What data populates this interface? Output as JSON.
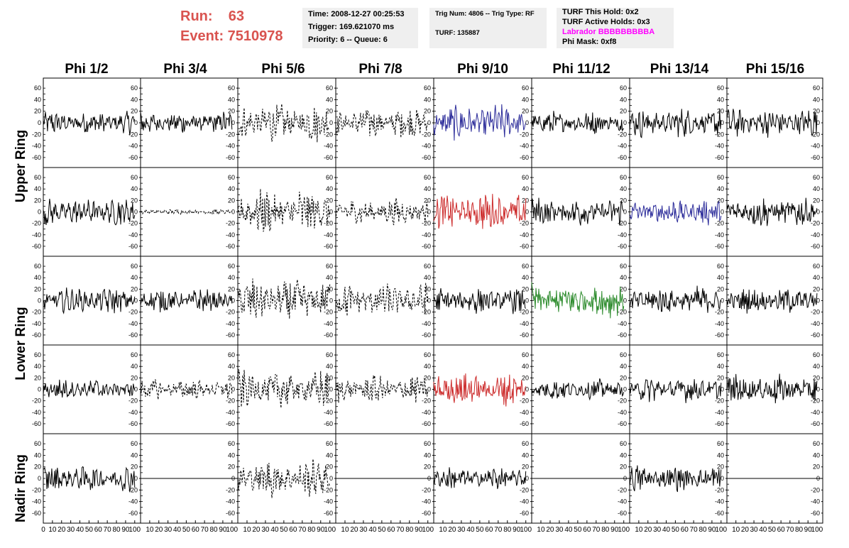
{
  "header": {
    "run_label": "Run:    63",
    "event_label": "Event: 7510978",
    "label_color": "#d9534f"
  },
  "info_box_1": {
    "time": "Time: 2008-12-27 00:25:53",
    "trigger": "Trigger: 169.621070 ms",
    "priority": "Priority: 6 -- Queue: 6"
  },
  "info_box_2": {
    "trig": "Trig Num: 4806 -- Trig Type: RF",
    "turf": "TURF: 135887"
  },
  "info_box_3": {
    "this_hold": "TURF This Hold: 0x2",
    "active_holds": "TURF Active Holds: 0x3",
    "labrador": "Labrador BBBBBBBBBA",
    "labrador_color": "#ff00ff",
    "phi_mask": "Phi Mask: 0xf8"
  },
  "columns": [
    "Phi 1/2",
    "Phi 3/4",
    "Phi 5/6",
    "Phi 7/8",
    "Phi 9/10",
    "Phi 11/12",
    "Phi 13/14",
    "Phi 15/16"
  ],
  "rows": [
    "Upper Ring",
    "Lower Ring",
    "Nadir Ring"
  ],
  "axes": {
    "y_ticks": [
      "60",
      "40",
      "20",
      "0",
      "-20",
      "-40",
      "-60"
    ],
    "nadir_y_ticks": [
      "60",
      "40",
      "20",
      "0",
      "-20",
      "-40",
      "-60"
    ],
    "x_ticks": [
      "0",
      "10",
      "20",
      "30",
      "40",
      "50",
      "60",
      "70",
      "80",
      "90",
      "100"
    ]
  },
  "chart_data": {
    "type": "line",
    "xlim": [
      0,
      100
    ],
    "ylim": [
      -70,
      70
    ],
    "panels": [
      {
        "row": 0,
        "col": 0,
        "style": "solid",
        "color": "#000000",
        "amp": 18
      },
      {
        "row": 0,
        "col": 1,
        "style": "solid",
        "color": "#000000",
        "amp": 18
      },
      {
        "row": 0,
        "col": 2,
        "style": "dashed",
        "color": "#000000",
        "amp": 30
      },
      {
        "row": 0,
        "col": 3,
        "style": "dashed",
        "color": "#000000",
        "amp": 24
      },
      {
        "row": 0,
        "col": 4,
        "style": "solid",
        "color": "#2c2c9a",
        "amp": 28
      },
      {
        "row": 0,
        "col": 5,
        "style": "solid",
        "color": "#000000",
        "amp": 18
      },
      {
        "row": 0,
        "col": 6,
        "style": "solid",
        "color": "#000000",
        "amp": 22
      },
      {
        "row": 0,
        "col": 7,
        "style": "solid",
        "color": "#000000",
        "amp": 22
      },
      {
        "row": 1,
        "col": 0,
        "style": "solid",
        "color": "#000000",
        "amp": 22
      },
      {
        "row": 1,
        "col": 1,
        "style": "dashed",
        "color": "#000000",
        "amp": 4
      },
      {
        "row": 1,
        "col": 2,
        "style": "dashed",
        "color": "#000000",
        "amp": 35
      },
      {
        "row": 1,
        "col": 3,
        "style": "dashed",
        "color": "#000000",
        "amp": 20
      },
      {
        "row": 1,
        "col": 4,
        "style": "solid",
        "color": "#cc2a2a",
        "amp": 30
      },
      {
        "row": 1,
        "col": 5,
        "style": "solid",
        "color": "#000000",
        "amp": 22
      },
      {
        "row": 1,
        "col": 6,
        "style": "solid",
        "color": "#2c2c9a",
        "amp": 20
      },
      {
        "row": 1,
        "col": 7,
        "style": "solid",
        "color": "#000000",
        "amp": 24
      },
      {
        "row": 2,
        "col": 0,
        "style": "solid",
        "color": "#000000",
        "amp": 20
      },
      {
        "row": 2,
        "col": 1,
        "style": "solid",
        "color": "#000000",
        "amp": 18
      },
      {
        "row": 2,
        "col": 2,
        "style": "dashed",
        "color": "#000000",
        "amp": 33
      },
      {
        "row": 2,
        "col": 3,
        "style": "dashed",
        "color": "#000000",
        "amp": 26
      },
      {
        "row": 2,
        "col": 4,
        "style": "solid",
        "color": "#000000",
        "amp": 20
      },
      {
        "row": 2,
        "col": 5,
        "style": "solid",
        "color": "#2a8a2a",
        "amp": 28
      },
      {
        "row": 2,
        "col": 6,
        "style": "solid",
        "color": "#000000",
        "amp": 22
      },
      {
        "row": 2,
        "col": 7,
        "style": "solid",
        "color": "#000000",
        "amp": 20
      },
      {
        "row": 3,
        "col": 0,
        "style": "solid",
        "color": "#000000",
        "amp": 16
      },
      {
        "row": 3,
        "col": 1,
        "style": "dashed",
        "color": "#000000",
        "amp": 16
      },
      {
        "row": 3,
        "col": 2,
        "style": "dashed",
        "color": "#000000",
        "amp": 30
      },
      {
        "row": 3,
        "col": 3,
        "style": "dashed",
        "color": "#000000",
        "amp": 22
      },
      {
        "row": 3,
        "col": 4,
        "style": "solid",
        "color": "#cc2a2a",
        "amp": 28
      },
      {
        "row": 3,
        "col": 5,
        "style": "solid",
        "color": "#000000",
        "amp": 16
      },
      {
        "row": 3,
        "col": 6,
        "style": "solid",
        "color": "#000000",
        "amp": 20
      },
      {
        "row": 3,
        "col": 7,
        "style": "solid",
        "color": "#000000",
        "amp": 24
      },
      {
        "row": 4,
        "col": 0,
        "style": "solid",
        "color": "#000000",
        "amp": 20
      },
      {
        "row": 4,
        "col": 1,
        "style": "flat",
        "color": "#000000",
        "amp": 0
      },
      {
        "row": 4,
        "col": 2,
        "style": "dashed",
        "color": "#000000",
        "amp": 28
      },
      {
        "row": 4,
        "col": 3,
        "style": "flat",
        "color": "#000000",
        "amp": 0
      },
      {
        "row": 4,
        "col": 4,
        "style": "solid",
        "color": "#000000",
        "amp": 18
      },
      {
        "row": 4,
        "col": 5,
        "style": "flat",
        "color": "#000000",
        "amp": 0
      },
      {
        "row": 4,
        "col": 6,
        "style": "solid",
        "color": "#000000",
        "amp": 20
      },
      {
        "row": 4,
        "col": 7,
        "style": "flat",
        "color": "#000000",
        "amp": 0
      }
    ]
  }
}
